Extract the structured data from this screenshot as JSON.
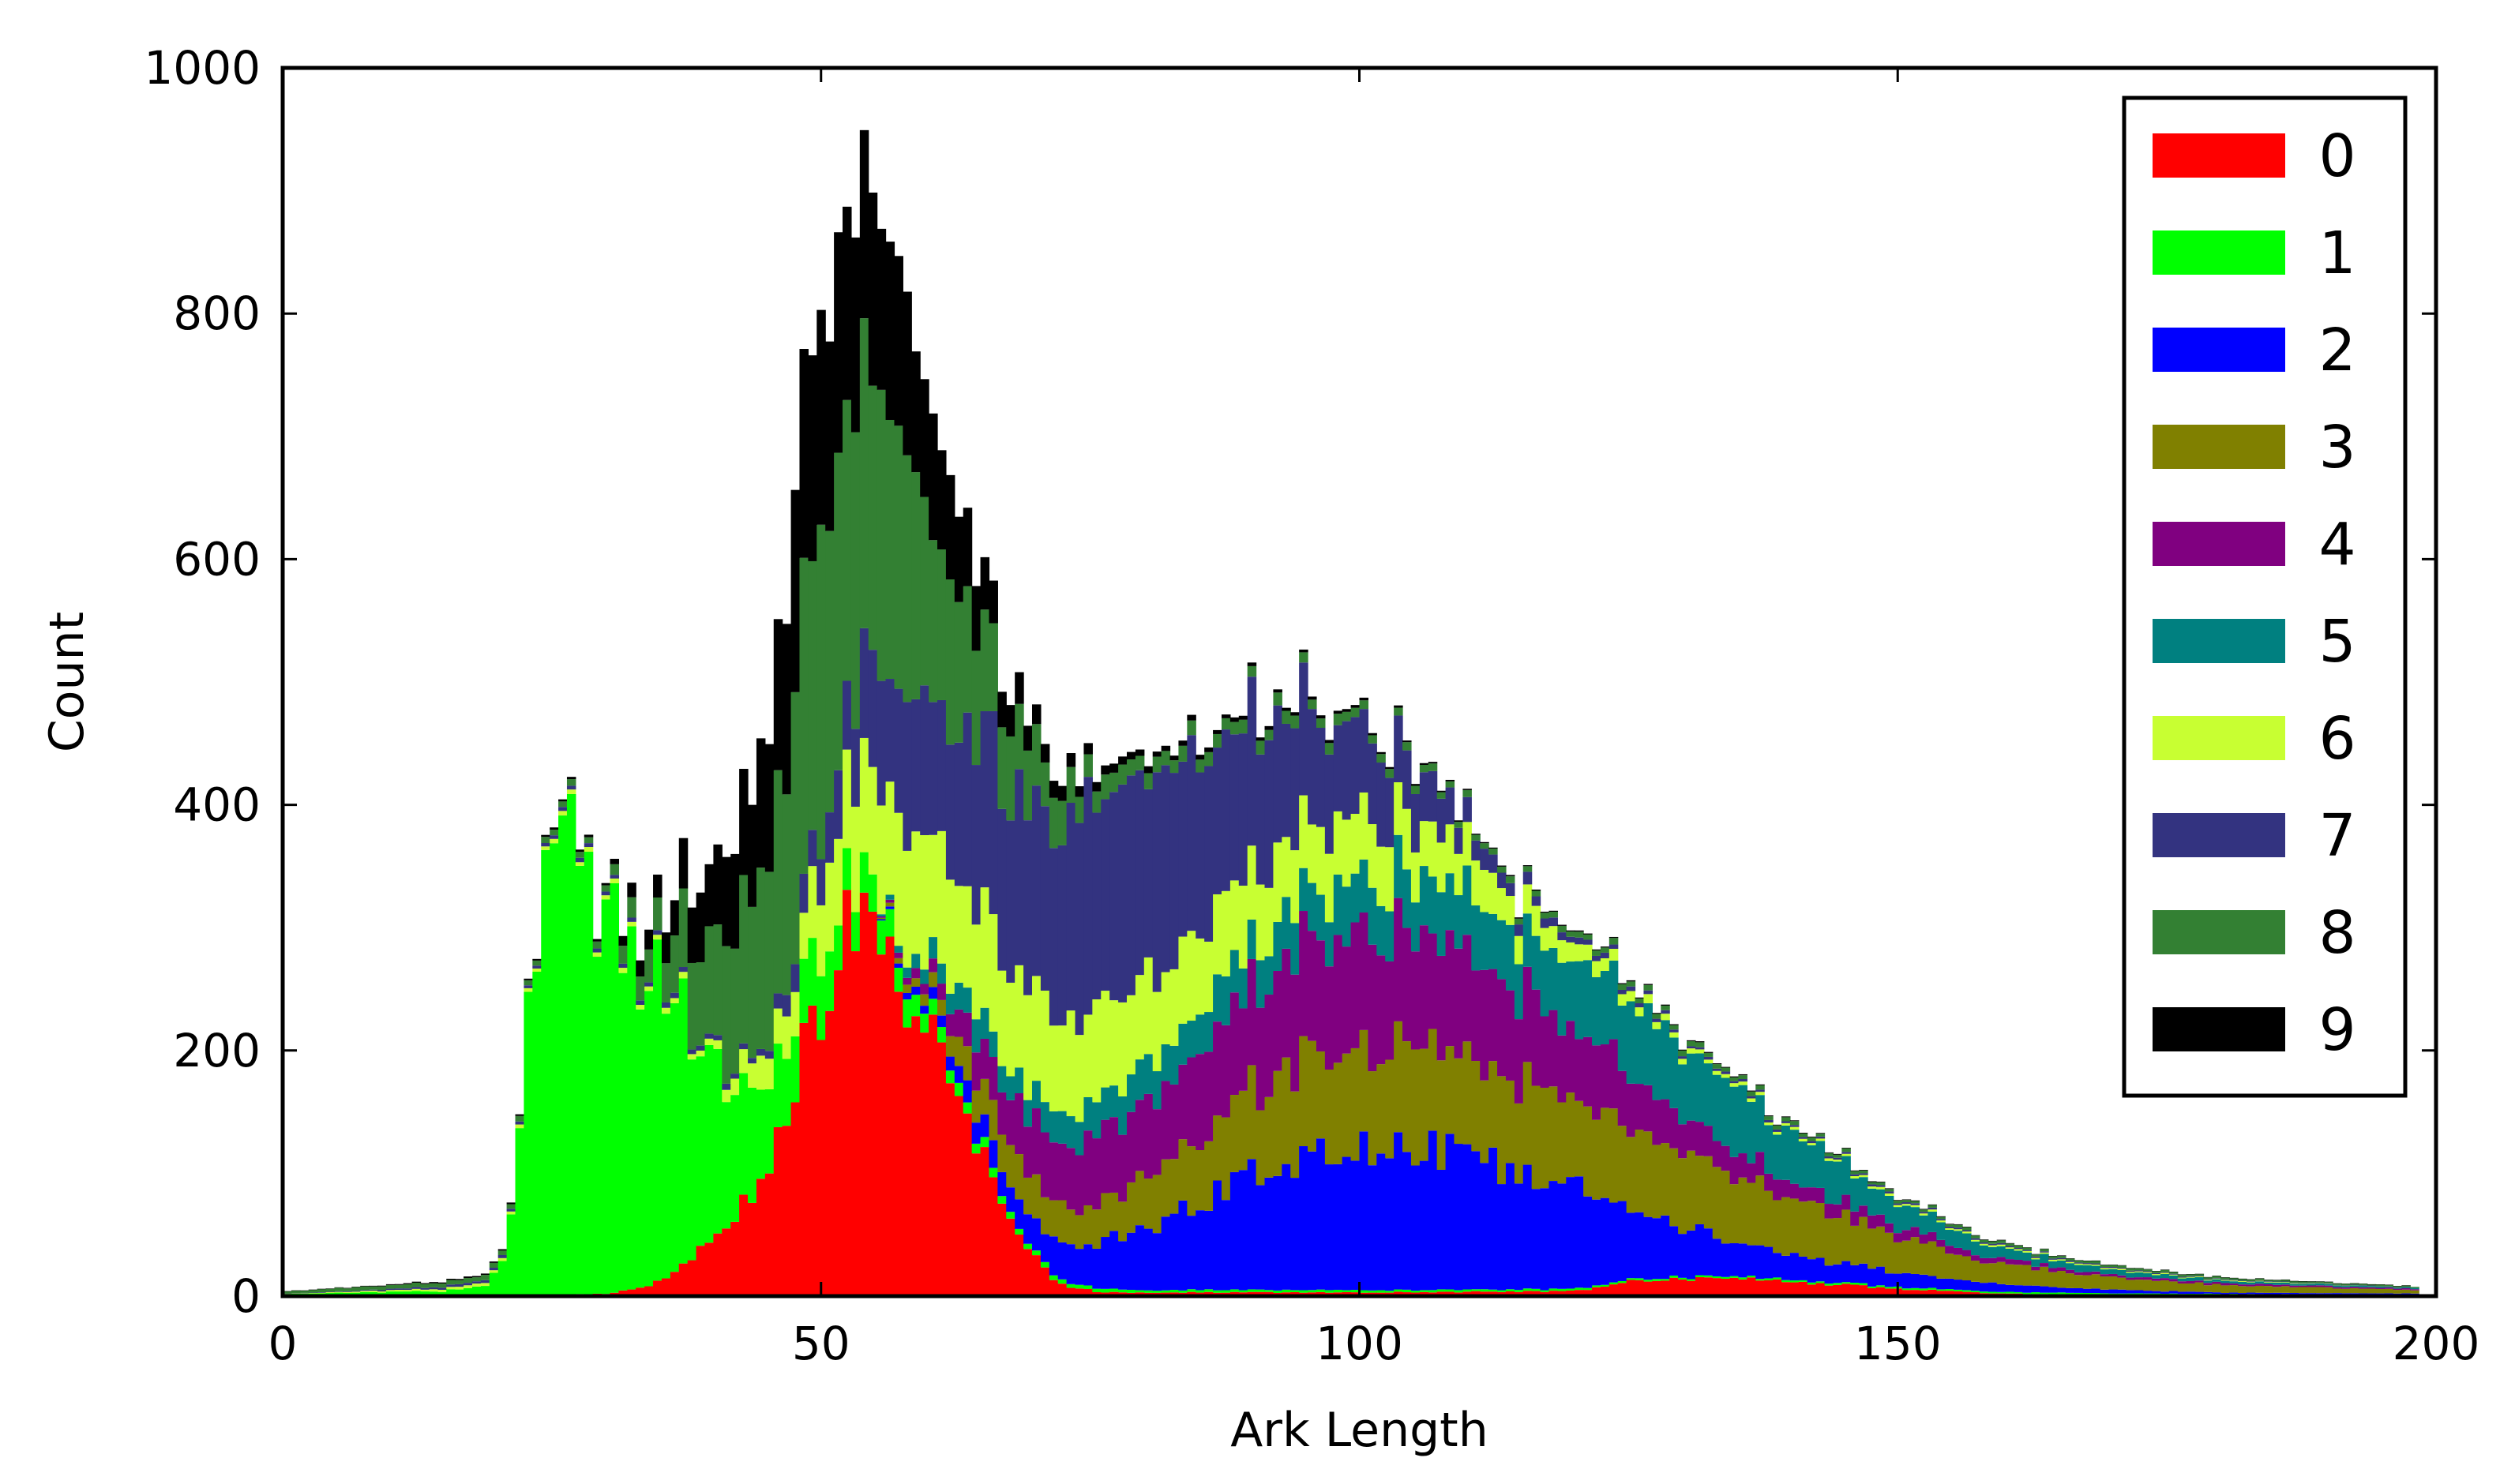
{
  "chart_data": {
    "type": "histogram",
    "stacked": true,
    "title": "",
    "xlabel": "Ark Length",
    "ylabel": "Count",
    "xlim": [
      0,
      200
    ],
    "ylim": [
      0,
      1000
    ],
    "xticks": [
      0,
      50,
      100,
      150,
      200
    ],
    "yticks": [
      0,
      200,
      400,
      600,
      800,
      1000
    ],
    "grid": false,
    "legend_position": "top-right",
    "series": [
      {
        "name": "0",
        "color": "#ff0000",
        "values_by_x": [
          [
            0,
            0
          ],
          [
            20,
            0
          ],
          [
            30,
            2
          ],
          [
            34,
            8
          ],
          [
            38,
            30
          ],
          [
            42,
            60
          ],
          [
            45,
            110
          ],
          [
            48,
            190
          ],
          [
            50,
            240
          ],
          [
            52,
            290
          ],
          [
            54,
            300
          ],
          [
            56,
            280
          ],
          [
            58,
            250
          ],
          [
            60,
            210
          ],
          [
            63,
            150
          ],
          [
            66,
            90
          ],
          [
            69,
            40
          ],
          [
            72,
            10
          ],
          [
            76,
            3
          ],
          [
            100,
            3
          ],
          [
            120,
            4
          ],
          [
            125,
            12
          ],
          [
            132,
            15
          ],
          [
            140,
            12
          ],
          [
            150,
            6
          ],
          [
            160,
            2
          ],
          [
            170,
            1
          ],
          [
            198,
            0
          ]
        ]
      },
      {
        "name": "1",
        "color": "#00ff00",
        "values_by_x": [
          [
            0,
            2
          ],
          [
            15,
            4
          ],
          [
            19,
            10
          ],
          [
            21,
            40
          ],
          [
            22,
            160
          ],
          [
            23,
            250
          ],
          [
            25,
            420
          ],
          [
            27,
            370
          ],
          [
            29,
            320
          ],
          [
            31,
            290
          ],
          [
            33,
            260
          ],
          [
            36,
            240
          ],
          [
            39,
            160
          ],
          [
            42,
            100
          ],
          [
            45,
            70
          ],
          [
            48,
            60
          ],
          [
            52,
            40
          ],
          [
            58,
            20
          ],
          [
            62,
            10
          ],
          [
            70,
            4
          ],
          [
            80,
            2
          ],
          [
            198,
            1
          ]
        ]
      },
      {
        "name": "2",
        "color": "#0000ff",
        "values_by_x": [
          [
            0,
            0
          ],
          [
            55,
            0
          ],
          [
            60,
            8
          ],
          [
            65,
            20
          ],
          [
            70,
            25
          ],
          [
            75,
            35
          ],
          [
            80,
            50
          ],
          [
            85,
            70
          ],
          [
            90,
            95
          ],
          [
            95,
            110
          ],
          [
            100,
            120
          ],
          [
            105,
            118
          ],
          [
            110,
            110
          ],
          [
            115,
            95
          ],
          [
            120,
            85
          ],
          [
            125,
            60
          ],
          [
            130,
            40
          ],
          [
            135,
            30
          ],
          [
            140,
            20
          ],
          [
            150,
            12
          ],
          [
            160,
            6
          ],
          [
            170,
            3
          ],
          [
            180,
            1
          ],
          [
            198,
            1
          ]
        ]
      },
      {
        "name": "3",
        "color": "#808000",
        "values_by_x": [
          [
            0,
            0
          ],
          [
            55,
            0
          ],
          [
            60,
            10
          ],
          [
            65,
            30
          ],
          [
            70,
            35
          ],
          [
            75,
            30
          ],
          [
            80,
            40
          ],
          [
            85,
            55
          ],
          [
            90,
            70
          ],
          [
            95,
            80
          ],
          [
            100,
            85
          ],
          [
            105,
            85
          ],
          [
            110,
            80
          ],
          [
            115,
            75
          ],
          [
            120,
            70
          ],
          [
            125,
            70
          ],
          [
            130,
            65
          ],
          [
            135,
            55
          ],
          [
            140,
            45
          ],
          [
            145,
            38
          ],
          [
            150,
            30
          ],
          [
            155,
            22
          ],
          [
            160,
            16
          ],
          [
            170,
            10
          ],
          [
            180,
            6
          ],
          [
            198,
            3
          ]
        ]
      },
      {
        "name": "4",
        "color": "#800080",
        "values_by_x": [
          [
            0,
            0
          ],
          [
            55,
            0
          ],
          [
            60,
            10
          ],
          [
            65,
            30
          ],
          [
            70,
            50
          ],
          [
            75,
            55
          ],
          [
            80,
            60
          ],
          [
            85,
            70
          ],
          [
            90,
            80
          ],
          [
            95,
            90
          ],
          [
            100,
            95
          ],
          [
            105,
            90
          ],
          [
            110,
            85
          ],
          [
            115,
            75
          ],
          [
            120,
            60
          ],
          [
            125,
            45
          ],
          [
            130,
            30
          ],
          [
            135,
            20
          ],
          [
            140,
            14
          ],
          [
            150,
            8
          ],
          [
            160,
            4
          ],
          [
            170,
            2
          ],
          [
            198,
            1
          ]
        ]
      },
      {
        "name": "5",
        "color": "#008080",
        "values_by_x": [
          [
            0,
            0
          ],
          [
            55,
            0
          ],
          [
            60,
            15
          ],
          [
            65,
            25
          ],
          [
            70,
            20
          ],
          [
            75,
            30
          ],
          [
            80,
            30
          ],
          [
            85,
            35
          ],
          [
            90,
            35
          ],
          [
            95,
            40
          ],
          [
            100,
            45
          ],
          [
            105,
            45
          ],
          [
            110,
            50
          ],
          [
            115,
            50
          ],
          [
            120,
            55
          ],
          [
            125,
            60
          ],
          [
            130,
            55
          ],
          [
            135,
            50
          ],
          [
            140,
            40
          ],
          [
            145,
            30
          ],
          [
            150,
            20
          ],
          [
            155,
            14
          ],
          [
            160,
            8
          ],
          [
            170,
            4
          ],
          [
            180,
            2
          ],
          [
            198,
            1
          ]
        ]
      },
      {
        "name": "6",
        "color": "#c8ff32",
        "values_by_x": [
          [
            0,
            0
          ],
          [
            40,
            5
          ],
          [
            48,
            40
          ],
          [
            53,
            90
          ],
          [
            57,
            100
          ],
          [
            60,
            95
          ],
          [
            65,
            90
          ],
          [
            70,
            80
          ],
          [
            75,
            75
          ],
          [
            80,
            70
          ],
          [
            85,
            65
          ],
          [
            90,
            60
          ],
          [
            95,
            55
          ],
          [
            100,
            50
          ],
          [
            105,
            45
          ],
          [
            110,
            35
          ],
          [
            115,
            25
          ],
          [
            120,
            15
          ],
          [
            125,
            8
          ],
          [
            130,
            4
          ],
          [
            140,
            2
          ],
          [
            198,
            0
          ]
        ]
      },
      {
        "name": "7",
        "color": "#333380",
        "values_by_x": [
          [
            0,
            0
          ],
          [
            45,
            5
          ],
          [
            50,
            40
          ],
          [
            55,
            90
          ],
          [
            60,
            120
          ],
          [
            65,
            140
          ],
          [
            70,
            160
          ],
          [
            75,
            170
          ],
          [
            80,
            160
          ],
          [
            85,
            150
          ],
          [
            90,
            120
          ],
          [
            95,
            100
          ],
          [
            100,
            70
          ],
          [
            105,
            45
          ],
          [
            110,
            20
          ],
          [
            115,
            10
          ],
          [
            120,
            5
          ],
          [
            130,
            2
          ],
          [
            198,
            0
          ]
        ]
      },
      {
        "name": "8",
        "color": "#338033",
        "values_by_x": [
          [
            0,
            2
          ],
          [
            30,
            5
          ],
          [
            35,
            30
          ],
          [
            40,
            90
          ],
          [
            45,
            150
          ],
          [
            48,
            220
          ],
          [
            52,
            260
          ],
          [
            56,
            220
          ],
          [
            60,
            160
          ],
          [
            65,
            90
          ],
          [
            70,
            45
          ],
          [
            75,
            20
          ],
          [
            80,
            12
          ],
          [
            90,
            10
          ],
          [
            100,
            8
          ],
          [
            110,
            5
          ],
          [
            120,
            5
          ],
          [
            130,
            4
          ],
          [
            140,
            3
          ],
          [
            150,
            2
          ],
          [
            160,
            2
          ],
          [
            198,
            1
          ]
        ]
      },
      {
        "name": "9",
        "color": "#000000",
        "values_by_x": [
          [
            0,
            0
          ],
          [
            30,
            2
          ],
          [
            35,
            20
          ],
          [
            40,
            60
          ],
          [
            45,
            110
          ],
          [
            48,
            150
          ],
          [
            50,
            170
          ],
          [
            52,
            180
          ],
          [
            55,
            150
          ],
          [
            58,
            120
          ],
          [
            62,
            80
          ],
          [
            65,
            40
          ],
          [
            70,
            15
          ],
          [
            75,
            8
          ],
          [
            80,
            5
          ],
          [
            90,
            3
          ],
          [
            100,
            2
          ],
          [
            110,
            1
          ],
          [
            198,
            0
          ]
        ]
      }
    ]
  }
}
